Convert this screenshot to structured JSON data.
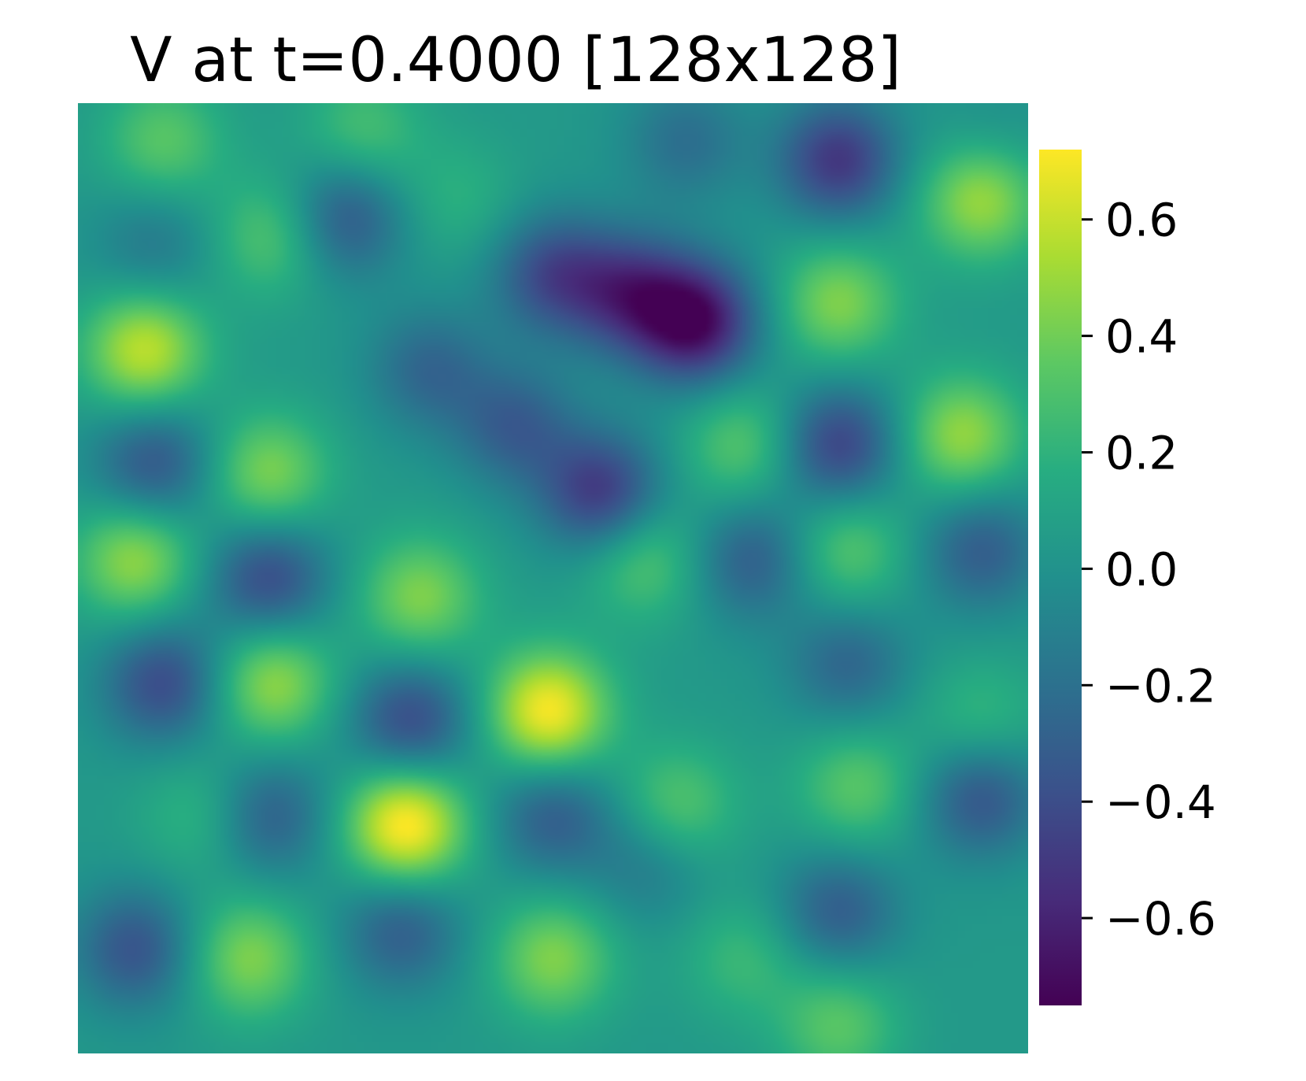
{
  "chart_data": {
    "type": "heatmap",
    "title": "V at t=0.4000 [128x128]",
    "xlabel": "",
    "ylabel": "",
    "axes_visible": false,
    "colormap": "viridis",
    "colormap_stops": [
      "#440154",
      "#472c7a",
      "#3b518b",
      "#2c718e",
      "#21908d",
      "#27ad81",
      "#5cc863",
      "#aadc32",
      "#fde725"
    ],
    "grid_size": [
      128,
      128
    ],
    "value_range": [
      -0.75,
      0.72
    ],
    "colorbar": {
      "orientation": "vertical",
      "placement": "right",
      "ticks": [
        0.6,
        0.4,
        0.2,
        0.0,
        -0.2,
        -0.4,
        -0.6
      ],
      "tick_labels": [
        "0.6",
        "0.4",
        "0.2",
        "0.0",
        "−0.2",
        "−0.4",
        "−0.6"
      ]
    },
    "extrema": {
      "max": {
        "value": 0.72,
        "x": 0.345,
        "y": 0.24
      },
      "min": {
        "value": -0.75,
        "x": 0.65,
        "y": 0.77
      }
    },
    "features": [
      {
        "x": 0.07,
        "y": 0.74,
        "value": 0.55
      },
      {
        "x": 0.06,
        "y": 0.52,
        "value": 0.45
      },
      {
        "x": 0.205,
        "y": 0.86,
        "value": 0.3
      },
      {
        "x": 0.2,
        "y": 0.61,
        "value": 0.4
      },
      {
        "x": 0.205,
        "y": 0.39,
        "value": 0.45
      },
      {
        "x": 0.18,
        "y": 0.1,
        "value": 0.4
      },
      {
        "x": 0.36,
        "y": 0.48,
        "value": 0.4
      },
      {
        "x": 0.495,
        "y": 0.36,
        "value": 0.68
      },
      {
        "x": 0.5,
        "y": 0.1,
        "value": 0.4
      },
      {
        "x": 0.595,
        "y": 0.52,
        "value": 0.3
      },
      {
        "x": 0.63,
        "y": 0.26,
        "value": 0.3
      },
      {
        "x": 0.7,
        "y": 0.64,
        "value": 0.3
      },
      {
        "x": 0.8,
        "y": 0.79,
        "value": 0.4
      },
      {
        "x": 0.81,
        "y": 0.53,
        "value": 0.3
      },
      {
        "x": 0.82,
        "y": 0.28,
        "value": 0.3
      },
      {
        "x": 0.93,
        "y": 0.65,
        "value": 0.45
      },
      {
        "x": 0.95,
        "y": 0.9,
        "value": 0.48
      },
      {
        "x": 0.95,
        "y": 0.35,
        "value": 0.2
      },
      {
        "x": 0.8,
        "y": 0.03,
        "value": 0.3
      },
      {
        "x": 0.09,
        "y": 0.96,
        "value": 0.3
      },
      {
        "x": 0.3,
        "y": 0.97,
        "value": 0.25
      },
      {
        "x": 0.4,
        "y": 0.9,
        "value": 0.15
      },
      {
        "x": 0.13,
        "y": 0.25,
        "value": 0.2
      },
      {
        "x": 0.7,
        "y": 0.1,
        "value": 0.2
      },
      {
        "x": 0.28,
        "y": 0.88,
        "value": -0.4
      },
      {
        "x": 0.37,
        "y": 0.72,
        "value": -0.3
      },
      {
        "x": 0.08,
        "y": 0.62,
        "value": -0.4
      },
      {
        "x": 0.2,
        "y": 0.5,
        "value": -0.45
      },
      {
        "x": 0.09,
        "y": 0.39,
        "value": -0.45
      },
      {
        "x": 0.2,
        "y": 0.25,
        "value": -0.35
      },
      {
        "x": 0.06,
        "y": 0.11,
        "value": -0.4
      },
      {
        "x": 0.46,
        "y": 0.66,
        "value": -0.35
      },
      {
        "x": 0.35,
        "y": 0.35,
        "value": -0.45
      },
      {
        "x": 0.55,
        "y": 0.59,
        "value": -0.55
      },
      {
        "x": 0.5,
        "y": 0.25,
        "value": -0.35
      },
      {
        "x": 0.34,
        "y": 0.13,
        "value": -0.35
      },
      {
        "x": 0.5,
        "y": 0.82,
        "value": -0.45
      },
      {
        "x": 0.58,
        "y": 0.8,
        "value": -0.5
      },
      {
        "x": 0.71,
        "y": 0.52,
        "value": -0.35
      },
      {
        "x": 0.81,
        "y": 0.41,
        "value": -0.3
      },
      {
        "x": 0.8,
        "y": 0.64,
        "value": -0.5
      },
      {
        "x": 0.8,
        "y": 0.94,
        "value": -0.55
      },
      {
        "x": 0.95,
        "y": 0.53,
        "value": -0.35
      },
      {
        "x": 0.95,
        "y": 0.27,
        "value": -0.4
      },
      {
        "x": 0.8,
        "y": 0.15,
        "value": -0.35
      },
      {
        "x": 0.6,
        "y": 0.2,
        "value": -0.2
      },
      {
        "x": 0.64,
        "y": 0.96,
        "value": -0.25
      },
      {
        "x": 0.96,
        "y": 0.96,
        "value": -0.1
      },
      {
        "x": 0.08,
        "y": 0.85,
        "value": -0.2
      }
    ]
  }
}
